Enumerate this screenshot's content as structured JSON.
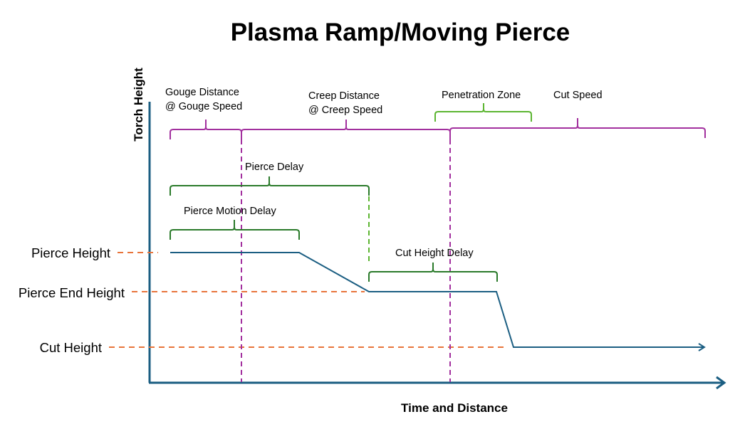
{
  "title": "Plasma Ramp/Moving Pierce",
  "axes": {
    "y_label": "Torch Height",
    "x_label": "Time and Distance"
  },
  "height_levels": [
    "Pierce Height",
    "Pierce End Height",
    "Cut Height"
  ],
  "spans": {
    "gouge": [
      "Gouge Distance",
      "@ Gouge Speed"
    ],
    "creep": [
      "Creep Distance",
      "@ Creep Speed"
    ],
    "penetration_zone": "Penetration Zone",
    "cut_speed": "Cut Speed",
    "pierce_delay": "Pierce Delay",
    "pierce_motion_delay": "Pierce Motion Delay",
    "cut_height_delay": "Cut Height Delay"
  },
  "colors": {
    "axis": "#1b5e82",
    "profile": "#1b5e82",
    "distance_braces": "#a2309e",
    "delay_braces": "#2a7a2a",
    "penetration": "#5cb531",
    "height_guides": "#e8743b"
  }
}
